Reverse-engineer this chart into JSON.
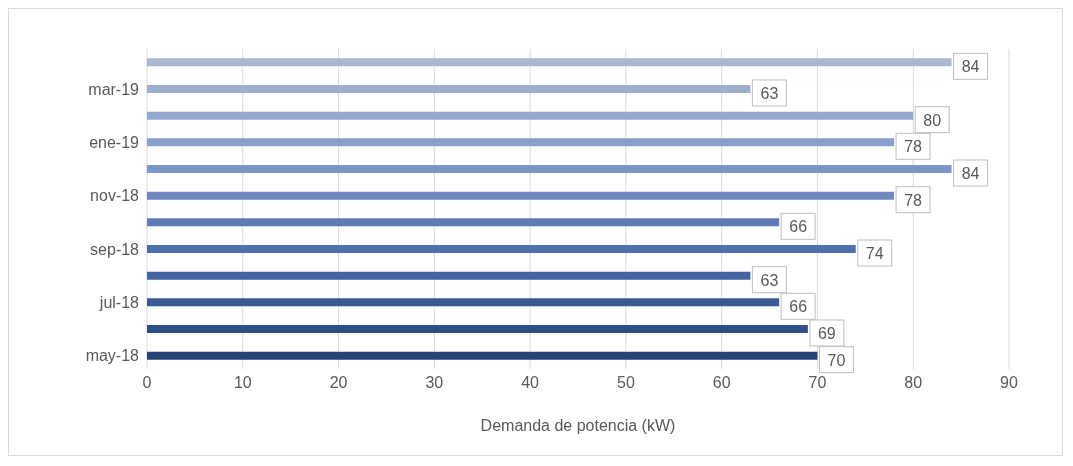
{
  "chart_data": {
    "type": "bar",
    "orientation": "horizontal",
    "xlabel": "Demanda de potencia (kW)",
    "categories": [
      null,
      "mar-19",
      null,
      "ene-19",
      null,
      "nov-18",
      null,
      "sep-18",
      null,
      "jul-18",
      null,
      "may-18"
    ],
    "values": [
      84,
      63,
      80,
      78,
      84,
      78,
      66,
      74,
      63,
      66,
      69,
      70
    ],
    "colors": [
      "#aab6d3",
      "#a0afd0",
      "#95a8cf",
      "#8a9fcc",
      "#7e95c7",
      "#6f88c0",
      "#5f7bb7",
      "#5070ad",
      "#4364a1",
      "#385993",
      "#2f4f86",
      "#264478"
    ],
    "xlim": [
      0,
      90
    ],
    "xticks": [
      0,
      10,
      20,
      30,
      40,
      50,
      60,
      70,
      80,
      90
    ],
    "grid": "x",
    "data_labels": true
  }
}
